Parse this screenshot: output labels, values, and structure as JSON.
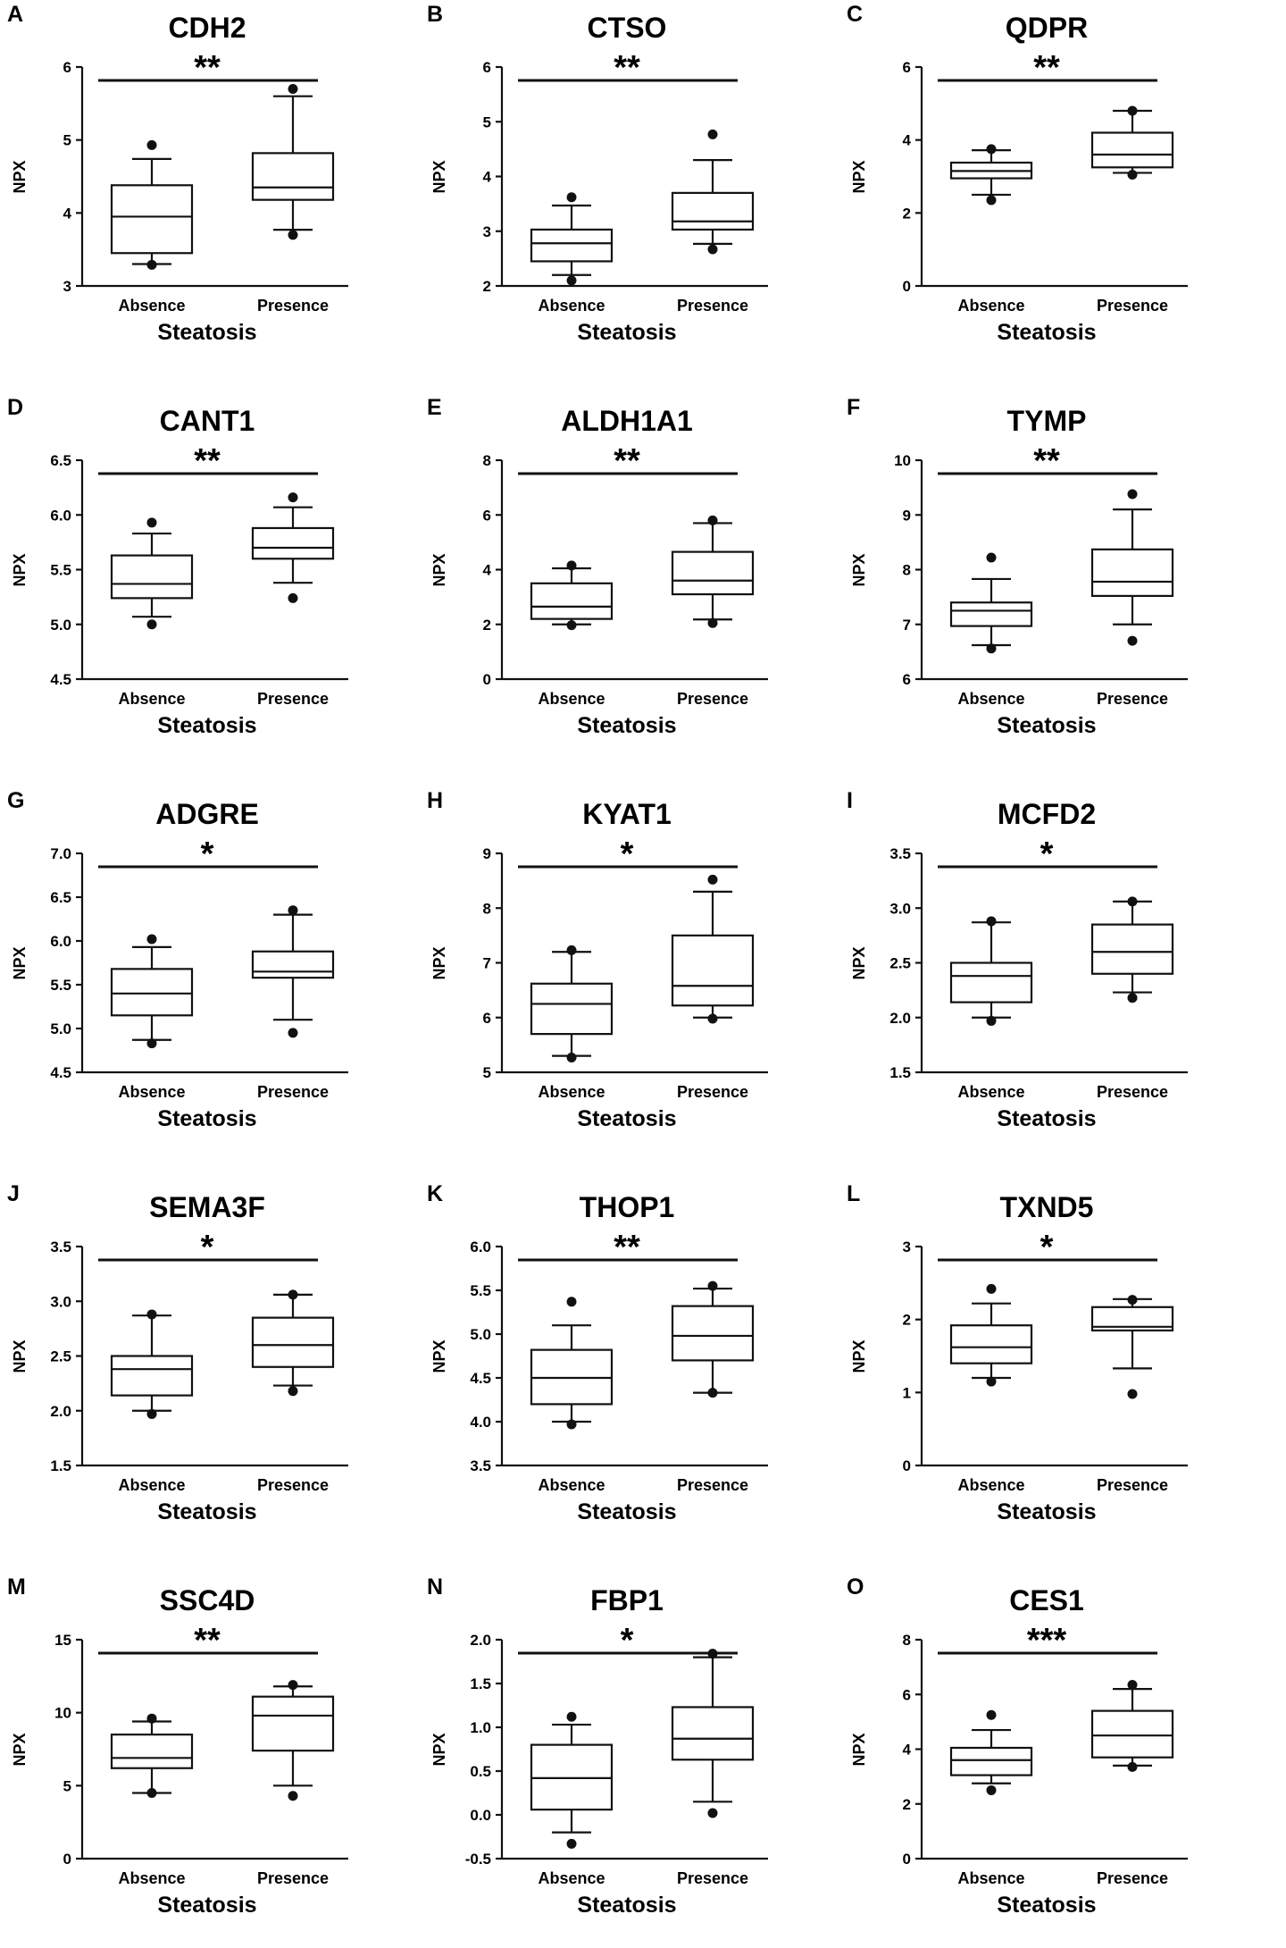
{
  "figure": {
    "common": {
      "ylabel": "NPX",
      "xlabel": "Steatosis",
      "categories": [
        "Absence",
        "Presence"
      ]
    },
    "panel_letters": [
      "A",
      "B",
      "C",
      "D",
      "E",
      "F",
      "G",
      "H",
      "I",
      "J",
      "K",
      "L",
      "M",
      "N",
      "O"
    ]
  },
  "chart_data": [
    {
      "letter": "A",
      "type": "boxplot",
      "title": "CDH2",
      "significance": "**",
      "ylim": [
        3,
        6
      ],
      "yticks": [
        "3",
        "4",
        "5",
        "6"
      ],
      "groups": [
        {
          "category": "Absence",
          "whisker_low": 3.3,
          "q1": 3.45,
          "median": 3.95,
          "q3": 4.38,
          "whisker_high": 4.74,
          "outliers": [
            3.29,
            4.93
          ]
        },
        {
          "category": "Presence",
          "whisker_low": 3.77,
          "q1": 4.18,
          "median": 4.35,
          "q3": 4.82,
          "whisker_high": 5.6,
          "outliers": [
            3.7,
            5.7
          ]
        }
      ]
    },
    {
      "letter": "B",
      "type": "boxplot",
      "title": "CTSO",
      "significance": "**",
      "ylim": [
        2,
        6
      ],
      "yticks": [
        "2",
        "3",
        "4",
        "5",
        "6"
      ],
      "groups": [
        {
          "category": "Absence",
          "whisker_low": 2.2,
          "q1": 2.45,
          "median": 2.78,
          "q3": 3.03,
          "whisker_high": 3.47,
          "outliers": [
            2.1,
            3.62
          ]
        },
        {
          "category": "Presence",
          "whisker_low": 2.77,
          "q1": 3.03,
          "median": 3.18,
          "q3": 3.7,
          "whisker_high": 4.3,
          "outliers": [
            2.67,
            4.77
          ]
        }
      ]
    },
    {
      "letter": "C",
      "type": "boxplot",
      "title": "QDPR",
      "significance": "**",
      "ylim": [
        0,
        6
      ],
      "yticks": [
        "0",
        "2",
        "4",
        "6"
      ],
      "groups": [
        {
          "category": "Absence",
          "whisker_low": 2.5,
          "q1": 2.95,
          "median": 3.15,
          "q3": 3.38,
          "whisker_high": 3.72,
          "outliers": [
            2.35,
            3.75
          ]
        },
        {
          "category": "Presence",
          "whisker_low": 3.1,
          "q1": 3.25,
          "median": 3.6,
          "q3": 4.2,
          "whisker_high": 4.8,
          "outliers": [
            3.05,
            4.8
          ]
        }
      ]
    },
    {
      "letter": "D",
      "type": "boxplot",
      "title": "CANT1",
      "significance": "**",
      "ylim": [
        4.5,
        6.5
      ],
      "yticks": [
        "4.5",
        "5.0",
        "5.5",
        "6.0",
        "6.5"
      ],
      "groups": [
        {
          "category": "Absence",
          "whisker_low": 5.07,
          "q1": 5.24,
          "median": 5.37,
          "q3": 5.63,
          "whisker_high": 5.83,
          "outliers": [
            5.0,
            5.93
          ]
        },
        {
          "category": "Presence",
          "whisker_low": 5.38,
          "q1": 5.6,
          "median": 5.7,
          "q3": 5.88,
          "whisker_high": 6.07,
          "outliers": [
            5.24,
            6.16
          ]
        }
      ]
    },
    {
      "letter": "E",
      "type": "boxplot",
      "title": "ALDH1A1",
      "significance": "**",
      "ylim": [
        0,
        8
      ],
      "yticks": [
        "0",
        "2",
        "4",
        "6",
        "8"
      ],
      "groups": [
        {
          "category": "Absence",
          "whisker_low": 2.0,
          "q1": 2.2,
          "median": 2.65,
          "q3": 3.5,
          "whisker_high": 4.05,
          "outliers": [
            1.97,
            4.15
          ]
        },
        {
          "category": "Presence",
          "whisker_low": 2.18,
          "q1": 3.1,
          "median": 3.6,
          "q3": 4.65,
          "whisker_high": 5.7,
          "outliers": [
            2.05,
            5.8
          ]
        }
      ]
    },
    {
      "letter": "F",
      "type": "boxplot",
      "title": "TYMP",
      "significance": "**",
      "ylim": [
        6,
        10
      ],
      "yticks": [
        "6",
        "7",
        "8",
        "9",
        "10"
      ],
      "groups": [
        {
          "category": "Absence",
          "whisker_low": 6.62,
          "q1": 6.97,
          "median": 7.25,
          "q3": 7.4,
          "whisker_high": 7.83,
          "outliers": [
            6.56,
            8.22
          ]
        },
        {
          "category": "Presence",
          "whisker_low": 7.0,
          "q1": 7.52,
          "median": 7.78,
          "q3": 8.37,
          "whisker_high": 9.1,
          "outliers": [
            6.7,
            9.38
          ]
        }
      ]
    },
    {
      "letter": "G",
      "type": "boxplot",
      "title": "ADGRE",
      "significance": "*",
      "ylim": [
        4.5,
        7.0
      ],
      "yticks": [
        "4.5",
        "5.0",
        "5.5",
        "6.0",
        "6.5",
        "7.0"
      ],
      "groups": [
        {
          "category": "Absence",
          "whisker_low": 4.87,
          "q1": 5.15,
          "median": 5.4,
          "q3": 5.68,
          "whisker_high": 5.93,
          "outliers": [
            4.83,
            6.02
          ]
        },
        {
          "category": "Presence",
          "whisker_low": 5.1,
          "q1": 5.58,
          "median": 5.65,
          "q3": 5.88,
          "whisker_high": 6.3,
          "outliers": [
            4.95,
            6.35
          ]
        }
      ]
    },
    {
      "letter": "H",
      "type": "boxplot",
      "title": "KYAT1",
      "significance": "*",
      "ylim": [
        5,
        9
      ],
      "yticks": [
        "5",
        "6",
        "7",
        "8",
        "9"
      ],
      "groups": [
        {
          "category": "Absence",
          "whisker_low": 5.3,
          "q1": 5.7,
          "median": 6.25,
          "q3": 6.62,
          "whisker_high": 7.2,
          "outliers": [
            5.27,
            7.23
          ]
        },
        {
          "category": "Presence",
          "whisker_low": 6.0,
          "q1": 6.22,
          "median": 6.58,
          "q3": 7.5,
          "whisker_high": 8.3,
          "outliers": [
            5.98,
            8.52
          ]
        }
      ]
    },
    {
      "letter": "I",
      "type": "boxplot",
      "title": "MCFD2",
      "significance": "*",
      "ylim": [
        1.5,
        3.5
      ],
      "yticks": [
        "1.5",
        "2.0",
        "2.5",
        "3.0",
        "3.5"
      ],
      "groups": [
        {
          "category": "Absence",
          "whisker_low": 2.0,
          "q1": 2.14,
          "median": 2.38,
          "q3": 2.5,
          "whisker_high": 2.87,
          "outliers": [
            1.97,
            2.88
          ]
        },
        {
          "category": "Presence",
          "whisker_low": 2.23,
          "q1": 2.4,
          "median": 2.6,
          "q3": 2.85,
          "whisker_high": 3.06,
          "outliers": [
            2.18,
            3.06
          ]
        }
      ]
    },
    {
      "letter": "J",
      "type": "boxplot",
      "title": "SEMA3F",
      "significance": "*",
      "ylim": [
        1.5,
        3.5
      ],
      "yticks": [
        "1.5",
        "2.0",
        "2.5",
        "3.0",
        "3.5"
      ],
      "groups": [
        {
          "category": "Absence",
          "whisker_low": 2.0,
          "q1": 2.14,
          "median": 2.38,
          "q3": 2.5,
          "whisker_high": 2.87,
          "outliers": [
            1.97,
            2.88
          ]
        },
        {
          "category": "Presence",
          "whisker_low": 2.23,
          "q1": 2.4,
          "median": 2.6,
          "q3": 2.85,
          "whisker_high": 3.06,
          "outliers": [
            2.18,
            3.06
          ]
        }
      ]
    },
    {
      "letter": "K",
      "type": "boxplot",
      "title": "THOP1",
      "significance": "**",
      "ylim": [
        3.5,
        6.0
      ],
      "yticks": [
        "3.5",
        "4.0",
        "4.5",
        "5.0",
        "5.5",
        "6.0"
      ],
      "groups": [
        {
          "category": "Absence",
          "whisker_low": 4.0,
          "q1": 4.2,
          "median": 4.5,
          "q3": 4.82,
          "whisker_high": 5.1,
          "outliers": [
            3.97,
            5.37
          ]
        },
        {
          "category": "Presence",
          "whisker_low": 4.33,
          "q1": 4.7,
          "median": 4.98,
          "q3": 5.32,
          "whisker_high": 5.52,
          "outliers": [
            4.33,
            5.55
          ]
        }
      ]
    },
    {
      "letter": "L",
      "type": "boxplot",
      "title": "TXND5",
      "significance": "*",
      "ylim": [
        0,
        3
      ],
      "yticks": [
        "0",
        "1",
        "2",
        "3"
      ],
      "groups": [
        {
          "category": "Absence",
          "whisker_low": 1.2,
          "q1": 1.4,
          "median": 1.62,
          "q3": 1.92,
          "whisker_high": 2.22,
          "outliers": [
            1.15,
            2.42
          ]
        },
        {
          "category": "Presence",
          "whisker_low": 1.33,
          "q1": 1.85,
          "median": 1.9,
          "q3": 2.17,
          "whisker_high": 2.28,
          "outliers": [
            0.98,
            2.27
          ]
        }
      ]
    },
    {
      "letter": "M",
      "type": "boxplot",
      "title": "SSC4D",
      "significance": "**",
      "ylim": [
        0,
        15
      ],
      "yticks": [
        "0",
        "5",
        "10",
        "15"
      ],
      "groups": [
        {
          "category": "Absence",
          "whisker_low": 4.5,
          "q1": 6.2,
          "median": 6.9,
          "q3": 8.5,
          "whisker_high": 9.4,
          "outliers": [
            4.5,
            9.6
          ]
        },
        {
          "category": "Presence",
          "whisker_low": 5.0,
          "q1": 7.4,
          "median": 9.8,
          "q3": 11.1,
          "whisker_high": 11.8,
          "outliers": [
            4.3,
            11.9
          ]
        }
      ]
    },
    {
      "letter": "N",
      "type": "boxplot",
      "title": "FBP1",
      "significance": "*",
      "ylim": [
        -0.5,
        2.0
      ],
      "yticks": [
        "-0.5",
        "0.0",
        "0.5",
        "1.0",
        "1.5",
        "2.0"
      ],
      "groups": [
        {
          "category": "Absence",
          "whisker_low": -0.2,
          "q1": 0.06,
          "median": 0.42,
          "q3": 0.8,
          "whisker_high": 1.03,
          "outliers": [
            -0.33,
            1.12
          ]
        },
        {
          "category": "Presence",
          "whisker_low": 0.15,
          "q1": 0.63,
          "median": 0.87,
          "q3": 1.23,
          "whisker_high": 1.8,
          "outliers": [
            0.02,
            1.84
          ]
        }
      ]
    },
    {
      "letter": "O",
      "type": "boxplot",
      "title": "CES1",
      "significance": "***",
      "ylim": [
        0,
        8
      ],
      "yticks": [
        "0",
        "2",
        "4",
        "6",
        "8"
      ],
      "groups": [
        {
          "category": "Absence",
          "whisker_low": 2.75,
          "q1": 3.05,
          "median": 3.6,
          "q3": 4.05,
          "whisker_high": 4.7,
          "outliers": [
            2.5,
            5.25
          ]
        },
        {
          "category": "Presence",
          "whisker_low": 3.4,
          "q1": 3.7,
          "median": 4.5,
          "q3": 5.4,
          "whisker_high": 6.2,
          "outliers": [
            3.35,
            6.35
          ]
        }
      ]
    }
  ]
}
